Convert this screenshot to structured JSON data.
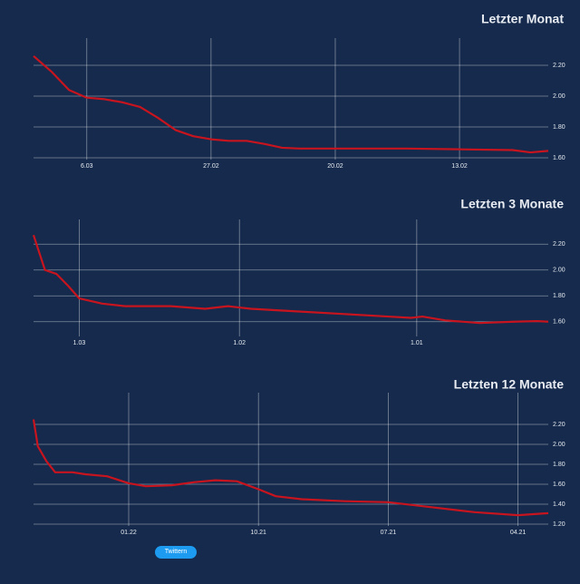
{
  "chart_data": [
    {
      "type": "line",
      "title": "Letzter Monat",
      "color": "#c8141e",
      "x": [
        68,
        67,
        66,
        65,
        64,
        63,
        62,
        61,
        60,
        59,
        58,
        57,
        56,
        55,
        54,
        53,
        50,
        47,
        44,
        41,
        40,
        39
      ],
      "values": [
        2.26,
        2.16,
        2.04,
        1.99,
        1.98,
        1.96,
        1.93,
        1.86,
        1.78,
        1.74,
        1.72,
        1.71,
        1.71,
        1.69,
        1.665,
        1.66,
        1.66,
        1.66,
        1.655,
        1.65,
        1.635,
        1.645
      ],
      "xlim": [
        68,
        39
      ],
      "ylim": [
        1.6,
        2.3
      ],
      "xticks": [
        {
          "value": 65,
          "label": "6.03"
        },
        {
          "value": 58,
          "label": "27.02"
        },
        {
          "value": 51,
          "label": "20.02"
        },
        {
          "value": 44,
          "label": "13.02"
        }
      ],
      "yticks": [
        {
          "value": 1.6,
          "label": "1.60"
        },
        {
          "value": 1.8,
          "label": "1.80"
        },
        {
          "value": 2.0,
          "label": "2.00"
        },
        {
          "value": 2.2,
          "label": "2.20"
        }
      ]
    },
    {
      "type": "line",
      "title": "Letzten 3 Monate",
      "color": "#c8141e",
      "x": [
        68,
        66,
        64,
        62,
        60,
        58,
        56,
        52,
        44,
        38,
        34,
        30,
        22,
        14,
        6,
        2,
        0,
        -4,
        -10,
        -16,
        -20,
        -22
      ],
      "values": [
        2.27,
        2.0,
        1.97,
        1.88,
        1.78,
        1.76,
        1.74,
        1.72,
        1.72,
        1.7,
        1.72,
        1.7,
        1.68,
        1.66,
        1.64,
        1.63,
        1.64,
        1.61,
        1.59,
        1.6,
        1.605,
        1.6
      ],
      "xlim": [
        68,
        -22
      ],
      "ylim": [
        1.5,
        2.3
      ],
      "xticks": [
        {
          "value": 60,
          "label": "1.03"
        },
        {
          "value": 32,
          "label": "1.02"
        },
        {
          "value": 1,
          "label": "1.01"
        }
      ],
      "yticks": [
        {
          "value": 1.6,
          "label": "1.60"
        },
        {
          "value": 1.8,
          "label": "1.80"
        },
        {
          "value": 2.0,
          "label": "2.00"
        },
        {
          "value": 2.2,
          "label": "2.20"
        }
      ]
    },
    {
      "type": "line",
      "title": "Letzten 12 Monate",
      "color": "#c8141e",
      "x": [
        2.2,
        2.1,
        1.9,
        1.7,
        1.3,
        1.0,
        0.5,
        0,
        -0.4,
        -1.0,
        -1.5,
        -2.0,
        -2.5,
        -3.0,
        -3.4,
        -4,
        -5,
        -6,
        -7,
        -8,
        -9,
        -9.7
      ],
      "values": [
        2.25,
        1.98,
        1.83,
        1.72,
        1.72,
        1.7,
        1.68,
        1.61,
        1.58,
        1.59,
        1.62,
        1.64,
        1.63,
        1.55,
        1.48,
        1.45,
        1.43,
        1.42,
        1.37,
        1.32,
        1.29,
        1.31
      ],
      "xlim": [
        2.2,
        -9.7
      ],
      "ylim": [
        1.2,
        2.4
      ],
      "xticks": [
        {
          "value": 0,
          "label": "01.22"
        },
        {
          "value": -3,
          "label": "10.21"
        },
        {
          "value": -6,
          "label": "07.21"
        },
        {
          "value": -9,
          "label": "04.21"
        }
      ],
      "yticks": [
        {
          "value": 1.2,
          "label": "1.20"
        },
        {
          "value": 1.4,
          "label": "1.40"
        },
        {
          "value": 1.6,
          "label": "1.60"
        },
        {
          "value": 1.8,
          "label": "1.80"
        },
        {
          "value": 2.0,
          "label": "2.00"
        },
        {
          "value": 2.2,
          "label": "2.20"
        }
      ]
    }
  ],
  "button": "Twittern"
}
